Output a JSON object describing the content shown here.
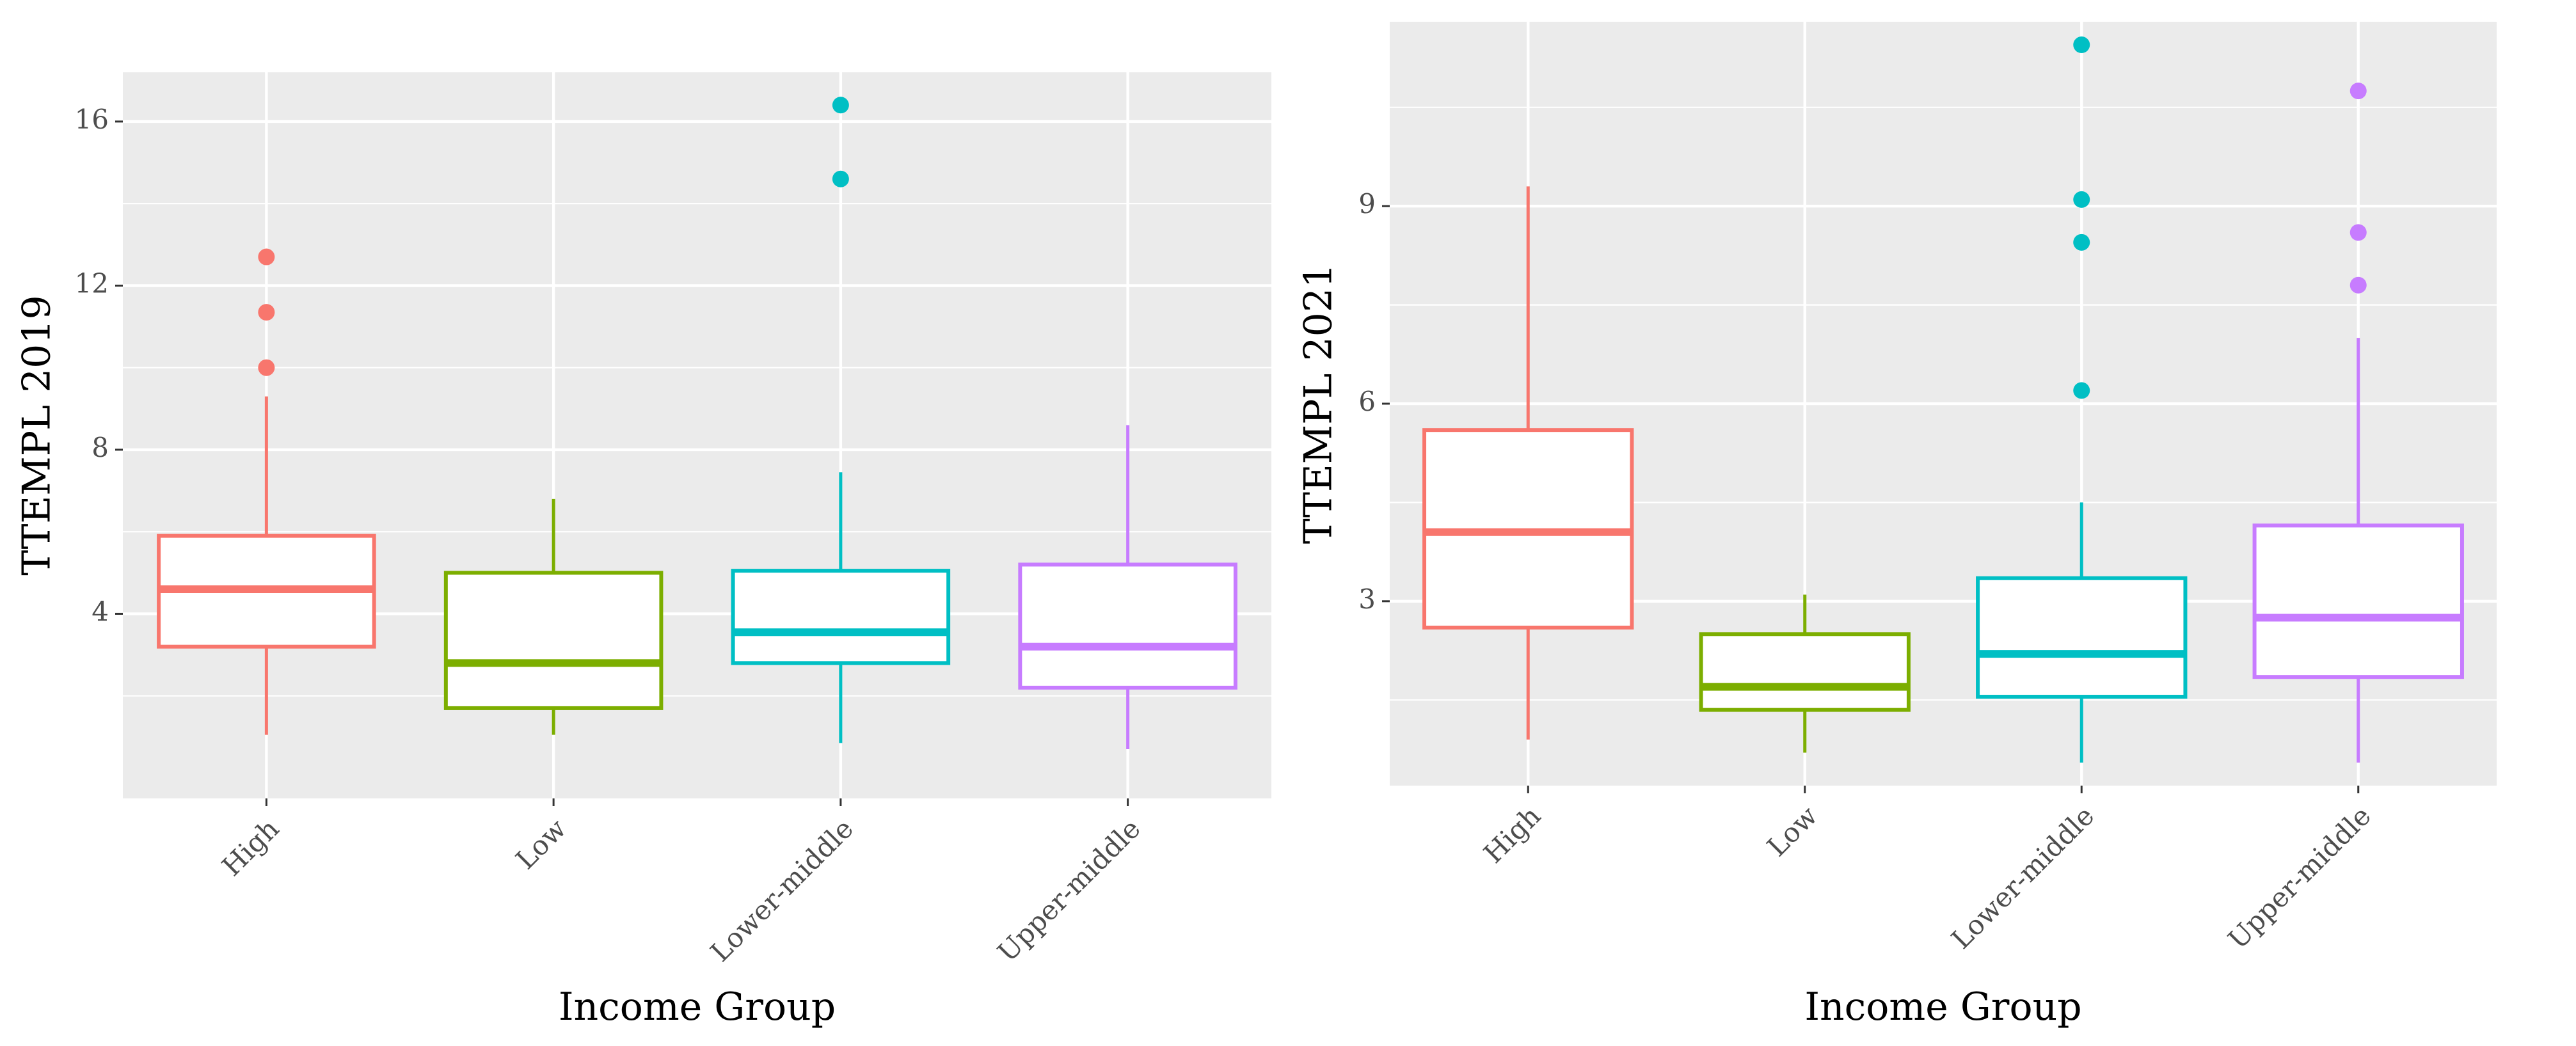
{
  "chart_data": [
    {
      "type": "box",
      "xlabel": "Income Group",
      "ylabel": "TTEMPL 2019",
      "ylim": [
        -0.5,
        17.2
      ],
      "yticks": [
        4,
        8,
        12,
        16
      ],
      "grid": true,
      "categories": [
        "High",
        "Low",
        "Lower-middle",
        "Upper-middle"
      ],
      "colors": [
        "#F8766D",
        "#7CAE00",
        "#00BFC4",
        "#C77CFF"
      ],
      "boxes": [
        {
          "category": "High",
          "whisker_low": 1.05,
          "q1": 3.2,
          "median": 4.6,
          "q3": 5.9,
          "whisker_high": 9.3,
          "outliers": [
            10.0,
            11.35,
            12.7
          ]
        },
        {
          "category": "Low",
          "whisker_low": 1.05,
          "q1": 1.7,
          "median": 2.8,
          "q3": 5.0,
          "whisker_high": 6.8,
          "outliers": []
        },
        {
          "category": "Lower-middle",
          "whisker_low": 0.85,
          "q1": 2.8,
          "median": 3.55,
          "q3": 5.05,
          "whisker_high": 7.45,
          "outliers": [
            14.6,
            16.4
          ]
        },
        {
          "category": "Upper-middle",
          "whisker_low": 0.7,
          "q1": 2.2,
          "median": 3.2,
          "q3": 5.2,
          "whisker_high": 8.6,
          "outliers": []
        }
      ]
    },
    {
      "type": "box",
      "xlabel": "Income Group",
      "ylabel": "TTEMPL 2021",
      "ylim": [
        0.2,
        11.8
      ],
      "yticks": [
        3,
        6,
        9
      ],
      "grid": true,
      "categories": [
        "High",
        "Low",
        "Lower-middle",
        "Upper-middle"
      ],
      "colors": [
        "#F8766D",
        "#7CAE00",
        "#00BFC4",
        "#C77CFF"
      ],
      "boxes": [
        {
          "category": "High",
          "whisker_low": 0.9,
          "q1": 2.6,
          "median": 4.05,
          "q3": 5.6,
          "whisker_high": 9.3,
          "outliers": []
        },
        {
          "category": "Low",
          "whisker_low": 0.7,
          "q1": 1.35,
          "median": 1.7,
          "q3": 2.5,
          "whisker_high": 3.1,
          "outliers": []
        },
        {
          "category": "Lower-middle",
          "whisker_low": 0.55,
          "q1": 1.55,
          "median": 2.2,
          "q3": 3.35,
          "whisker_high": 4.5,
          "outliers": [
            6.2,
            8.45,
            9.1,
            11.45
          ]
        },
        {
          "category": "Upper-middle",
          "whisker_low": 0.55,
          "q1": 1.85,
          "median": 2.75,
          "q3": 4.15,
          "whisker_high": 7.0,
          "outliers": [
            7.8,
            8.6,
            10.75
          ]
        }
      ]
    }
  ]
}
